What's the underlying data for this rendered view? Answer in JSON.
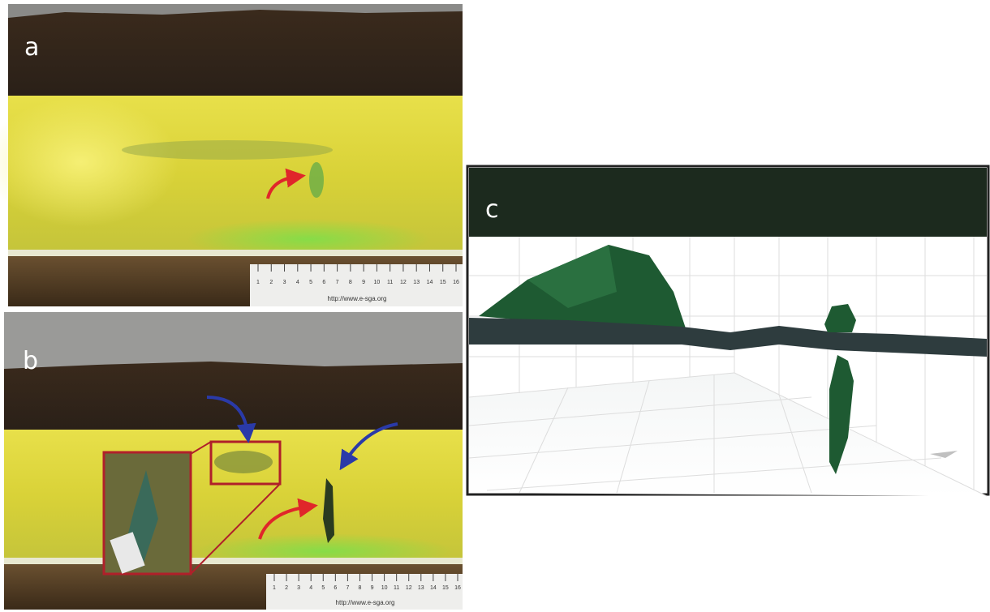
{
  "panels": [
    {
      "label": "a",
      "ruler": {
        "numbers": [
          "1",
          "2",
          "3",
          "4",
          "5",
          "6",
          "7",
          "8",
          "9",
          "10",
          "11",
          "12",
          "13",
          "14",
          "15",
          "16"
        ],
        "url": "http://www.e-sga.org"
      }
    },
    {
      "label": "b",
      "ruler": {
        "numbers": [
          "1",
          "2",
          "3",
          "4",
          "5",
          "6",
          "7",
          "8",
          "9",
          "10",
          "11",
          "12",
          "13",
          "14",
          "15",
          "16"
        ],
        "url": "http://www.e-sga.org"
      }
    },
    {
      "label": "c"
    }
  ]
}
